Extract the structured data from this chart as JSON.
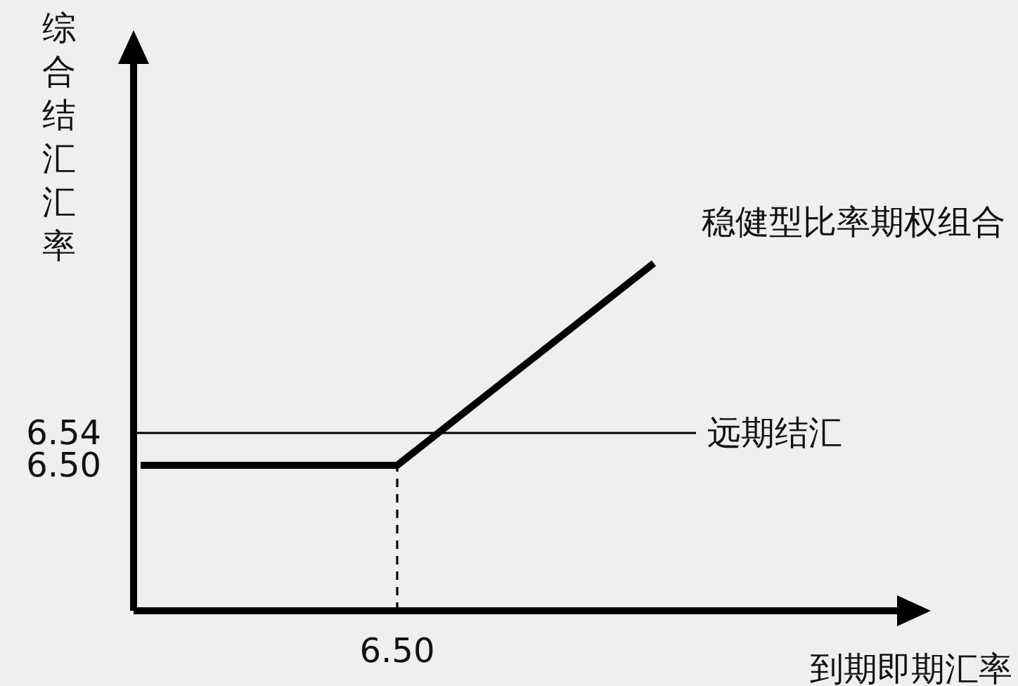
{
  "chart_data": {
    "type": "line",
    "xlabel": "到期即期汇率",
    "ylabel": "综合结汇汇率",
    "categories": [
      null,
      "6.50",
      null
    ],
    "series": [
      {
        "name": "稳健型比率期权组合",
        "color": "#000000",
        "values": [
          6.5,
          6.5,
          6.75
        ]
      }
    ],
    "ylim": [
      6.32,
      7.0
    ],
    "yticks": [
      {
        "value": 6.5,
        "label": "6.50"
      },
      {
        "value": 6.54,
        "label": "6.54"
      }
    ],
    "ref_lines": [
      {
        "axis": "y",
        "value": 6.54,
        "label": "远期结汇",
        "color": "#000000",
        "line_style": "solid"
      },
      {
        "axis": "x",
        "value": "6.50",
        "color": "#000000",
        "line_style": "dashed"
      }
    ],
    "marker": "none",
    "line_style": "solid"
  }
}
